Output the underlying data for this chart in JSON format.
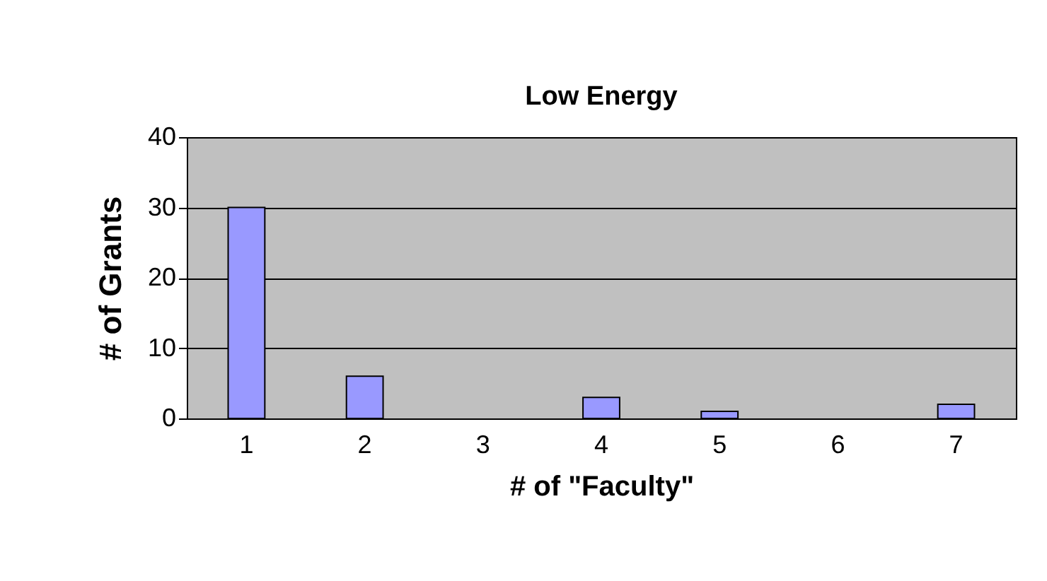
{
  "chart_data": {
    "type": "bar",
    "title": "Low Energy",
    "xlabel": "# of \"Faculty\"",
    "ylabel": "# of Grants",
    "categories": [
      "1",
      "2",
      "3",
      "4",
      "5",
      "6",
      "7"
    ],
    "values": [
      30,
      6,
      0,
      3,
      1,
      0,
      2
    ],
    "color": "#9999ff",
    "ylim": [
      0,
      40
    ],
    "yticks": [
      0,
      10,
      20,
      30,
      40
    ],
    "grid": "y"
  }
}
